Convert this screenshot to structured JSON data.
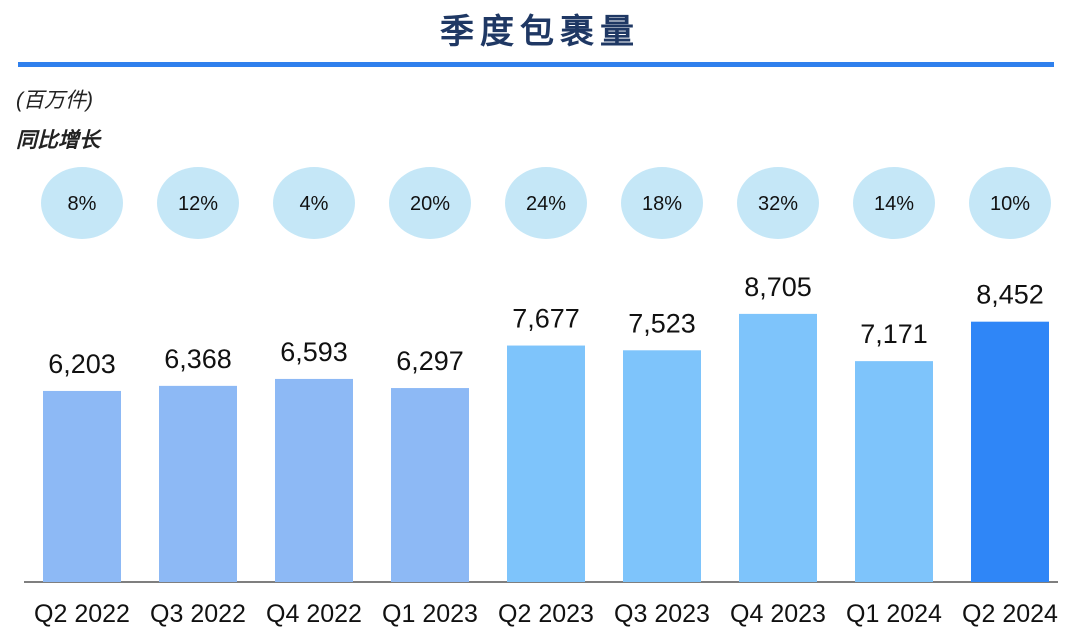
{
  "title": "季度包裹量",
  "unit_label": "(百万件)",
  "growth_label": "同比增长",
  "colors": {
    "title": "#1f3864",
    "rule": "#2f80ed",
    "bar_2022": "#8db9f5",
    "bar_2023": "#7ec4fb",
    "bar_2024": "#2f86f7",
    "growth_bubble": "#c5e7f7",
    "axis": "#555555"
  },
  "chart_data": {
    "type": "bar",
    "title": "季度包裹量",
    "ylabel": "(百万件)",
    "categories": [
      "Q2 2022",
      "Q3 2022",
      "Q4 2022",
      "Q1 2023",
      "Q2 2023",
      "Q3 2023",
      "Q4 2023",
      "Q1 2024",
      "Q2 2024"
    ],
    "values": [
      6203,
      6368,
      6593,
      6297,
      7677,
      7523,
      8705,
      7171,
      8452
    ],
    "value_labels": [
      "6,203",
      "6,368",
      "6,593",
      "6,297",
      "7,677",
      "7,523",
      "8,705",
      "7,171",
      "8,452"
    ],
    "yoy_growth": [
      "8%",
      "12%",
      "4%",
      "20%",
      "24%",
      "18%",
      "32%",
      "14%",
      "10%"
    ],
    "bar_color_keys": [
      "bar_2022",
      "bar_2022",
      "bar_2022",
      "bar_2022",
      "bar_2023",
      "bar_2023",
      "bar_2023",
      "bar_2023",
      "bar_2024"
    ],
    "ylim": [
      0,
      10000
    ],
    "grid": false,
    "legend": "none"
  }
}
